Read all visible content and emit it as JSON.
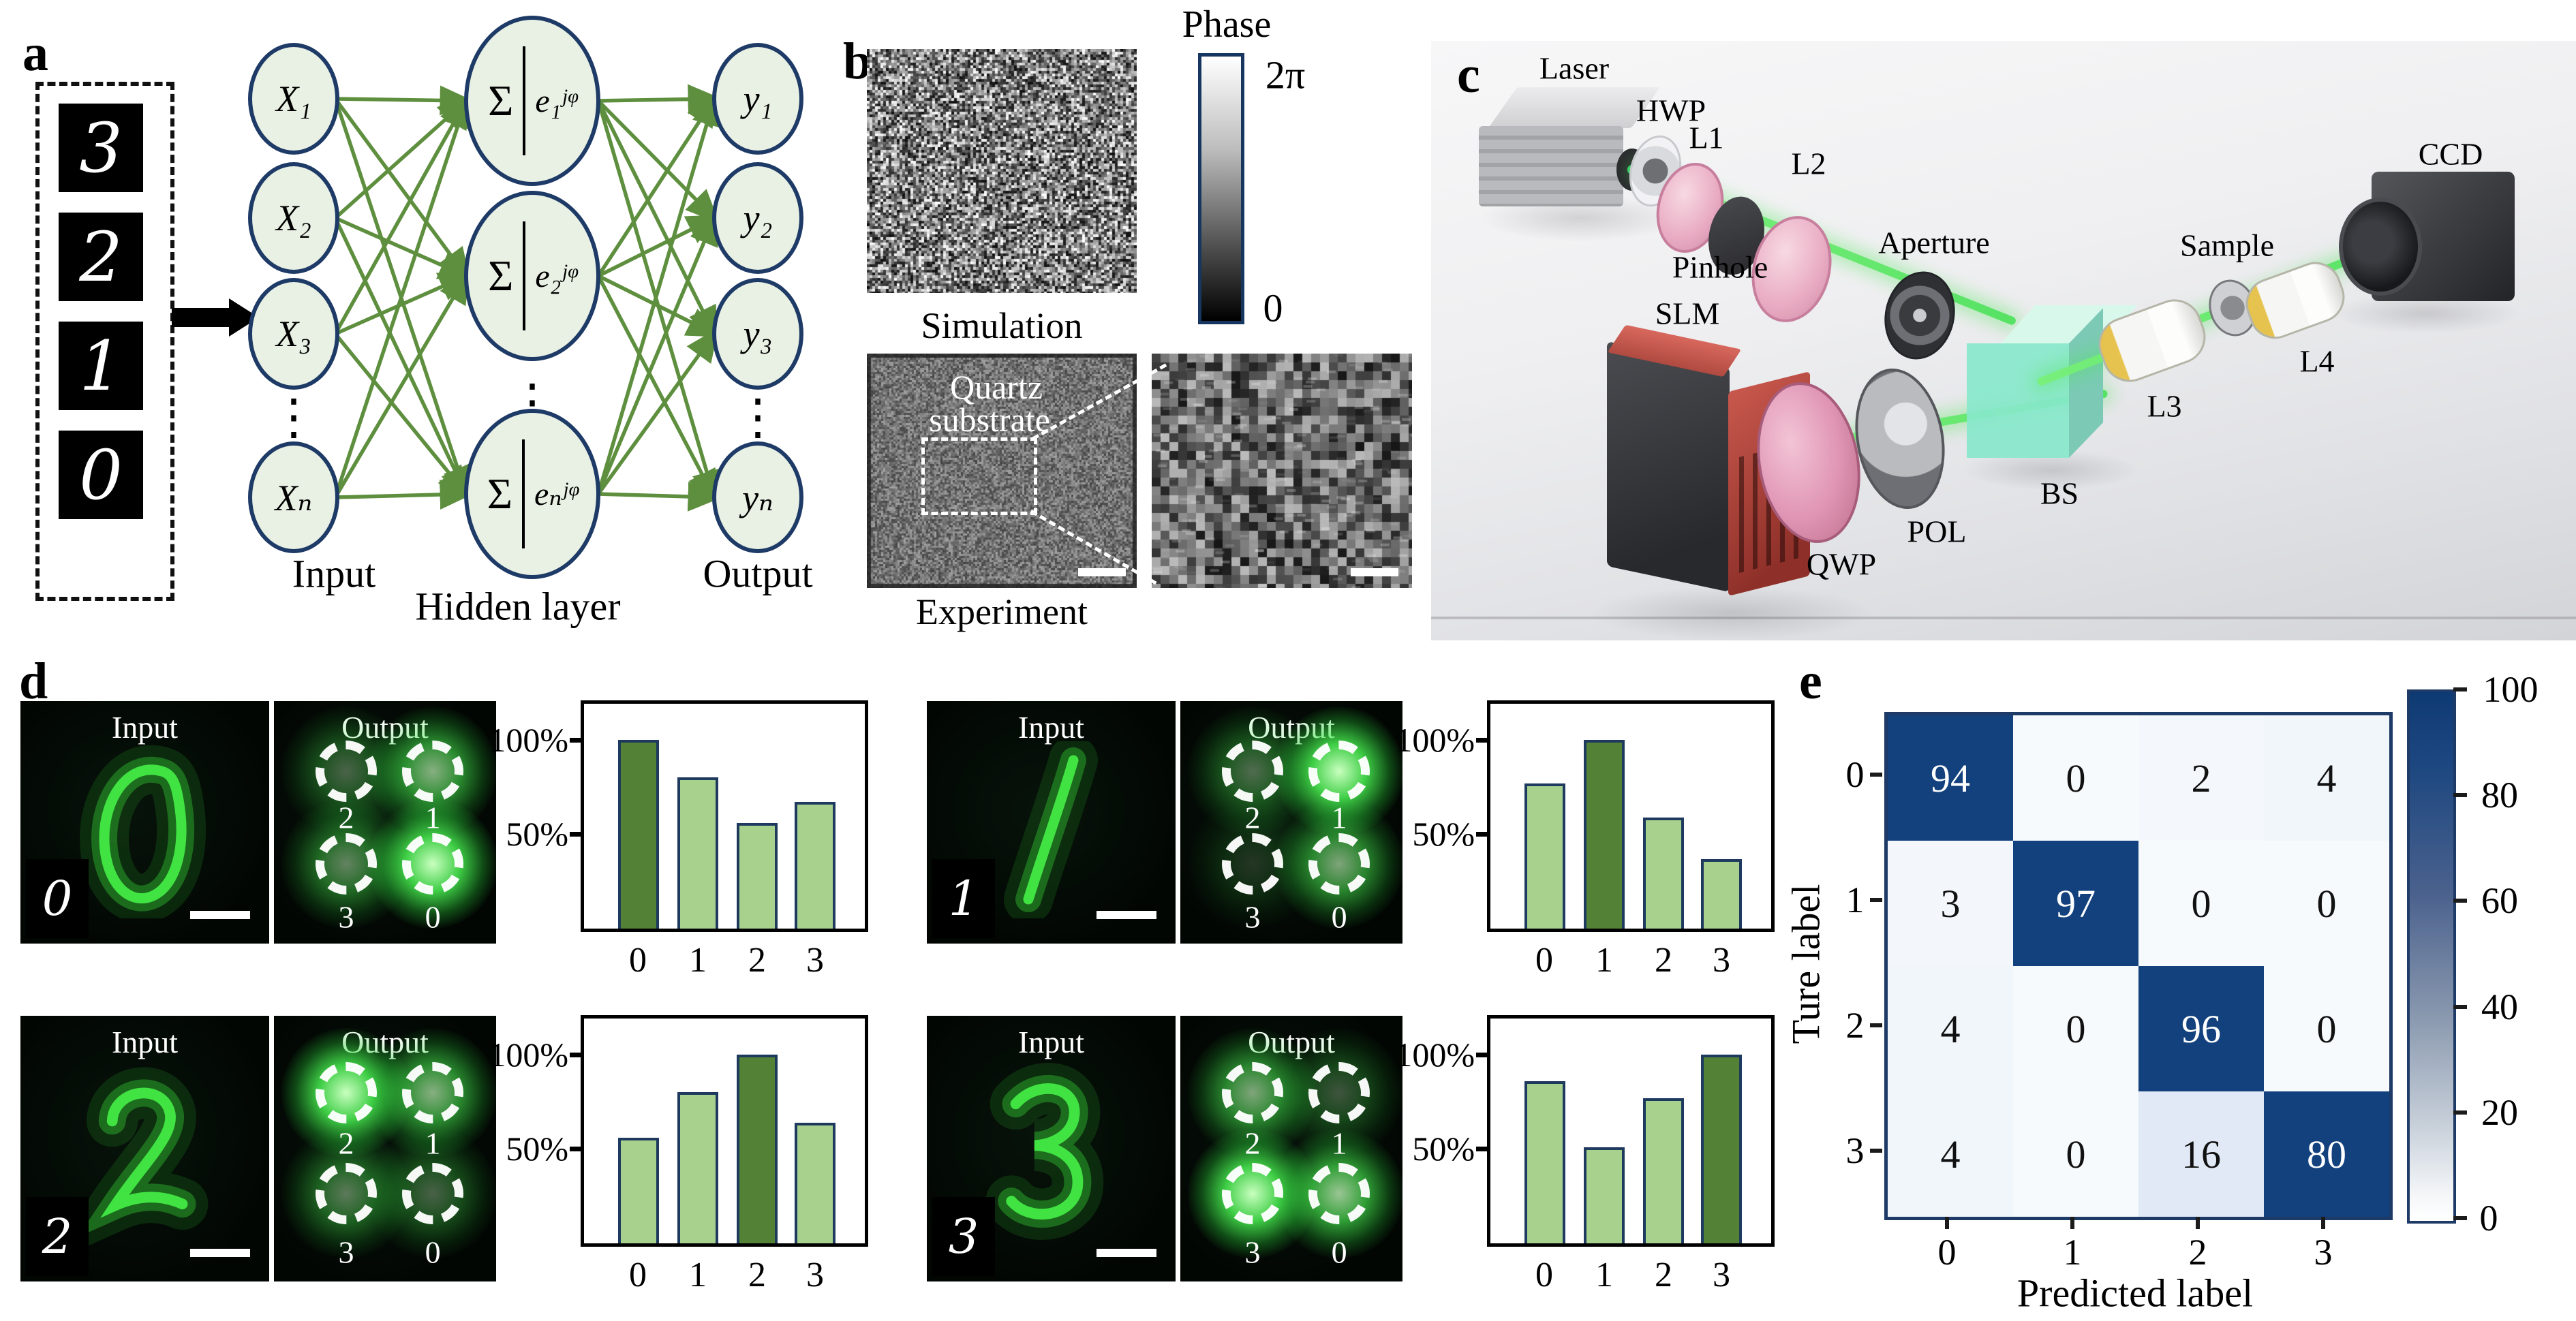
{
  "figure": {
    "panel_labels": {
      "a": "a",
      "b": "b",
      "c": "c",
      "d": "d",
      "e": "e"
    }
  },
  "panel_a": {
    "digits": [
      "3",
      "2",
      "1",
      "0"
    ],
    "input_nodes": [
      "X₁",
      "X₂",
      "X₃",
      "Xₙ"
    ],
    "hidden_sigma": "Σ",
    "hidden_exps": [
      "e₁ʲᵠ",
      "e₂ʲᵠ",
      "eₙʲᵠ"
    ],
    "output_nodes": [
      "y₁",
      "y₂",
      "y₃",
      "yₙ"
    ],
    "dots": "⋮",
    "caption_input": "Input",
    "caption_hidden": "Hidden layer",
    "caption_output": "Output"
  },
  "panel_b": {
    "caption_simulation": "Simulation",
    "caption_experiment": "Experiment",
    "colorbar_title": "Phase",
    "colorbar_max": "2π",
    "colorbar_min": "0",
    "quartz_line1": "Quartz",
    "quartz_line2": "substrate"
  },
  "panel_c": {
    "labels": {
      "laser": "Laser",
      "hwp": "HWP",
      "l1": "L1",
      "l2": "L2",
      "pinhole": "Pinhole",
      "aperture": "Aperture",
      "slm": "SLM",
      "qwp": "QWP",
      "pol": "POL",
      "bs": "BS",
      "sample": "Sample",
      "l3": "L3",
      "l4": "L4",
      "ccd": "CCD"
    }
  },
  "panel_d": {
    "input_label": "Input",
    "output_label": "Output",
    "y_ticks": [
      "100%",
      "50%"
    ],
    "x_ticks": [
      "0",
      "1",
      "2",
      "3"
    ],
    "quadrant_labels": [
      "2",
      "1",
      "3",
      "0"
    ],
    "groups": [
      {
        "digit": "0"
      },
      {
        "digit": "1"
      },
      {
        "digit": "2"
      },
      {
        "digit": "3"
      }
    ]
  },
  "panel_e": {
    "ylabel": "Ture label",
    "xlabel": "Predicted label",
    "row_labels": [
      "0",
      "1",
      "2",
      "3"
    ],
    "col_labels": [
      "0",
      "1",
      "2",
      "3"
    ],
    "colorbar_ticks": [
      "100",
      "80",
      "60",
      "40",
      "20",
      "0"
    ]
  },
  "chart_data": [
    {
      "type": "bar",
      "title": "Output intensity, input digit 0",
      "categories": [
        "0",
        "1",
        "2",
        "3"
      ],
      "values": [
        100,
        80,
        56,
        67
      ],
      "highlight_index": 0,
      "ylabel": "%",
      "yticks": [
        "100%",
        "50%"
      ],
      "ylim": [
        0,
        119
      ]
    },
    {
      "type": "bar",
      "title": "Output intensity, input digit 1",
      "categories": [
        "0",
        "1",
        "2",
        "3"
      ],
      "values": [
        77,
        100,
        59,
        37
      ],
      "highlight_index": 1,
      "ylabel": "%",
      "yticks": [
        "100%",
        "50%"
      ],
      "ylim": [
        0,
        119
      ]
    },
    {
      "type": "bar",
      "title": "Output intensity, input digit 2",
      "categories": [
        "0",
        "1",
        "2",
        "3"
      ],
      "values": [
        56,
        80,
        100,
        64
      ],
      "highlight_index": 2,
      "ylabel": "%",
      "yticks": [
        "100%",
        "50%"
      ],
      "ylim": [
        0,
        119
      ]
    },
    {
      "type": "bar",
      "title": "Output intensity, input digit 3",
      "categories": [
        "0",
        "1",
        "2",
        "3"
      ],
      "values": [
        86,
        51,
        77,
        100
      ],
      "highlight_index": 3,
      "ylabel": "%",
      "yticks": [
        "100%",
        "50%"
      ],
      "ylim": [
        0,
        119
      ]
    },
    {
      "type": "heatmap",
      "title": "Confusion matrix",
      "rows": [
        "0",
        "1",
        "2",
        "3"
      ],
      "cols": [
        "0",
        "1",
        "2",
        "3"
      ],
      "values": [
        [
          94,
          0,
          2,
          4
        ],
        [
          3,
          97,
          0,
          0
        ],
        [
          4,
          0,
          96,
          0
        ],
        [
          4,
          0,
          16,
          80
        ]
      ],
      "xlabel": "Predicted label",
      "ylabel": "Ture label",
      "colorbar_range": [
        0,
        100
      ]
    }
  ],
  "colors": {
    "bar_fill": "#a9d18e",
    "bar_highlight": "#538135",
    "bar_edge": "#1e3a5f",
    "node_fill": "#e9f1e4",
    "node_edge": "#1e3a66",
    "edge_green": "#5e8f3e",
    "cm_dark": "#12417d",
    "beam_green": "#54e05e"
  }
}
